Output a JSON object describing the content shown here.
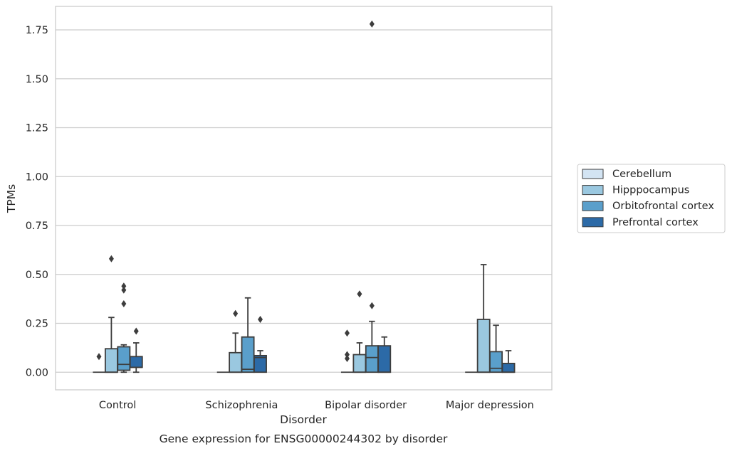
{
  "chart_data": {
    "type": "box",
    "xlabel": "Disorder",
    "ylabel": "TPMs",
    "caption": "Gene expression for ENSG00000244302 by disorder",
    "ylim": [
      -0.09,
      1.87
    ],
    "yticks": [
      0.0,
      0.25,
      0.5,
      0.75,
      1.0,
      1.25,
      1.5,
      1.75
    ],
    "ytick_labels": [
      "0.00",
      "0.25",
      "0.50",
      "0.75",
      "1.00",
      "1.25",
      "1.50",
      "1.75"
    ],
    "grid": "horizontal",
    "legend_position": "right",
    "categories": [
      "Control",
      "Schizophrenia",
      "Bipolar disorder",
      "Major depression"
    ],
    "series": [
      {
        "name": "Cerebellum",
        "color": "#d3e4f3",
        "boxes": [
          {
            "min": 0.0,
            "q1": 0.0,
            "median": 0.0,
            "q3": 0.0,
            "max": 0.0,
            "outliers": [
              0.08
            ]
          },
          {
            "min": 0.0,
            "q1": 0.0,
            "median": 0.0,
            "q3": 0.0,
            "max": 0.0,
            "outliers": []
          },
          {
            "min": 0.0,
            "q1": 0.0,
            "median": 0.0,
            "q3": 0.0,
            "max": 0.0,
            "outliers": [
              0.07,
              0.09,
              0.2
            ]
          },
          {
            "min": 0.0,
            "q1": 0.0,
            "median": 0.0,
            "q3": 0.0,
            "max": 0.0,
            "outliers": []
          }
        ]
      },
      {
        "name": "Hipppocampus",
        "color": "#9ac8e0",
        "boxes": [
          {
            "min": 0.0,
            "q1": 0.0,
            "median": 0.0,
            "q3": 0.12,
            "max": 0.28,
            "outliers": [
              0.58
            ]
          },
          {
            "min": 0.0,
            "q1": 0.0,
            "median": 0.0,
            "q3": 0.1,
            "max": 0.2,
            "outliers": [
              0.3
            ]
          },
          {
            "min": 0.0,
            "q1": 0.0,
            "median": 0.0,
            "q3": 0.09,
            "max": 0.15,
            "outliers": [
              0.4
            ]
          },
          {
            "min": 0.0,
            "q1": 0.0,
            "median": 0.0,
            "q3": 0.27,
            "max": 0.55,
            "outliers": []
          }
        ]
      },
      {
        "name": "Orbitofrontal cortex",
        "color": "#5a9fcb",
        "boxes": [
          {
            "min": 0.0,
            "q1": 0.01,
            "median": 0.04,
            "q3": 0.13,
            "max": 0.14,
            "outliers": [
              0.35,
              0.42,
              0.44
            ]
          },
          {
            "min": 0.0,
            "q1": 0.0,
            "median": 0.015,
            "q3": 0.18,
            "max": 0.38,
            "outliers": []
          },
          {
            "min": 0.0,
            "q1": 0.0,
            "median": 0.075,
            "q3": 0.135,
            "max": 0.26,
            "outliers": [
              0.34,
              1.78
            ]
          },
          {
            "min": 0.0,
            "q1": 0.0,
            "median": 0.02,
            "q3": 0.105,
            "max": 0.24,
            "outliers": []
          }
        ]
      },
      {
        "name": "Prefrontal cortex",
        "color": "#2c6aa7",
        "boxes": [
          {
            "min": 0.0,
            "q1": 0.025,
            "median": 0.025,
            "q3": 0.08,
            "max": 0.15,
            "outliers": [
              0.21
            ]
          },
          {
            "min": 0.0,
            "q1": 0.0,
            "median": 0.075,
            "q3": 0.085,
            "max": 0.11,
            "outliers": [
              0.27
            ]
          },
          {
            "min": 0.0,
            "q1": 0.0,
            "median": 0.0,
            "q3": 0.135,
            "max": 0.18,
            "outliers": []
          },
          {
            "min": 0.0,
            "q1": 0.0,
            "median": 0.0,
            "q3": 0.045,
            "max": 0.11,
            "outliers": []
          }
        ]
      }
    ]
  }
}
